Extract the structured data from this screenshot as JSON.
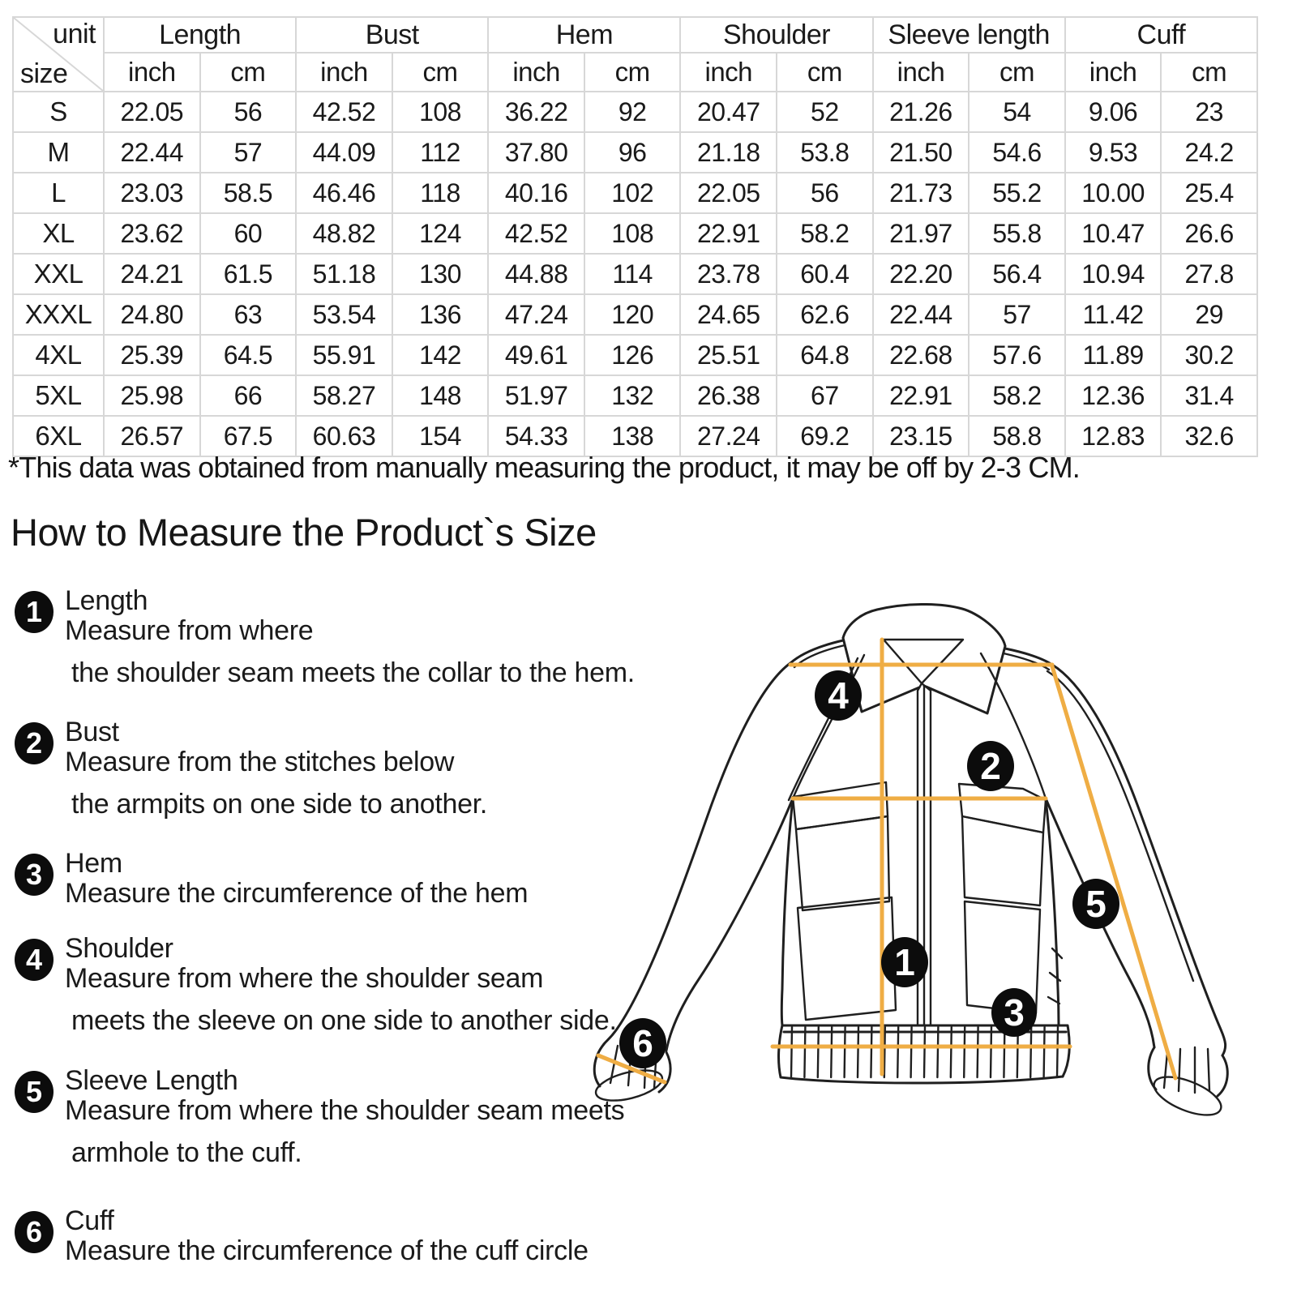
{
  "size_table": {
    "corner": {
      "unit_label": "unit",
      "size_label": "size"
    },
    "column_groups": [
      "Length",
      "Bust",
      "Hem",
      "Shoulder",
      "Sleeve length",
      "Cuff"
    ],
    "unit_headers": [
      "inch",
      "cm"
    ],
    "rows": [
      {
        "size": "S",
        "values": [
          "22.05",
          "56",
          "42.52",
          "108",
          "36.22",
          "92",
          "20.47",
          "52",
          "21.26",
          "54",
          "9.06",
          "23"
        ]
      },
      {
        "size": "M",
        "values": [
          "22.44",
          "57",
          "44.09",
          "112",
          "37.80",
          "96",
          "21.18",
          "53.8",
          "21.50",
          "54.6",
          "9.53",
          "24.2"
        ]
      },
      {
        "size": "L",
        "values": [
          "23.03",
          "58.5",
          "46.46",
          "118",
          "40.16",
          "102",
          "22.05",
          "56",
          "21.73",
          "55.2",
          "10.00",
          "25.4"
        ]
      },
      {
        "size": "XL",
        "values": [
          "23.62",
          "60",
          "48.82",
          "124",
          "42.52",
          "108",
          "22.91",
          "58.2",
          "21.97",
          "55.8",
          "10.47",
          "26.6"
        ]
      },
      {
        "size": "XXL",
        "values": [
          "24.21",
          "61.5",
          "51.18",
          "130",
          "44.88",
          "114",
          "23.78",
          "60.4",
          "22.20",
          "56.4",
          "10.94",
          "27.8"
        ]
      },
      {
        "size": "XXXL",
        "values": [
          "24.80",
          "63",
          "53.54",
          "136",
          "47.24",
          "120",
          "24.65",
          "62.6",
          "22.44",
          "57",
          "11.42",
          "29"
        ]
      },
      {
        "size": "4XL",
        "values": [
          "25.39",
          "64.5",
          "55.91",
          "142",
          "49.61",
          "126",
          "25.51",
          "64.8",
          "22.68",
          "57.6",
          "11.89",
          "30.2"
        ]
      },
      {
        "size": "5XL",
        "values": [
          "25.98",
          "66",
          "58.27",
          "148",
          "51.97",
          "132",
          "26.38",
          "67",
          "22.91",
          "58.2",
          "12.36",
          "31.4"
        ]
      },
      {
        "size": "6XL",
        "values": [
          "26.57",
          "67.5",
          "60.63",
          "154",
          "54.33",
          "138",
          "27.24",
          "69.2",
          "23.15",
          "58.8",
          "12.83",
          "32.6"
        ]
      }
    ]
  },
  "footnote": "*This data was obtained from manually measuring the product, it may be off by 2-3 CM.",
  "section_title": "How to Measure the Product`s Size",
  "instructions": [
    {
      "number": "1",
      "title": "Length",
      "lines": [
        "Measure from where",
        "the shoulder seam meets the collar to the hem."
      ]
    },
    {
      "number": "2",
      "title": "Bust",
      "lines": [
        "Measure from the stitches below",
        "the armpits on one side to another."
      ]
    },
    {
      "number": "3",
      "title": "Hem",
      "lines": [
        "Measure the circumference of the hem"
      ]
    },
    {
      "number": "4",
      "title": "Shoulder",
      "lines": [
        "Measure from where the shoulder seam",
        "meets the sleeve on one side to another side."
      ]
    },
    {
      "number": "5",
      "title": "Sleeve Length",
      "lines": [
        "Measure from where the shoulder seam meets",
        "armhole to the cuff."
      ]
    },
    {
      "number": "6",
      "title": "Cuff",
      "lines": [
        "Measure the circumference of the cuff circle"
      ]
    }
  ],
  "diagram": {
    "marker_labels": [
      "1",
      "2",
      "3",
      "4",
      "5",
      "6"
    ],
    "line_color": "#EFAD44",
    "marker_color": "#0c0c0c",
    "outline_color": "#1f1f1f"
  }
}
